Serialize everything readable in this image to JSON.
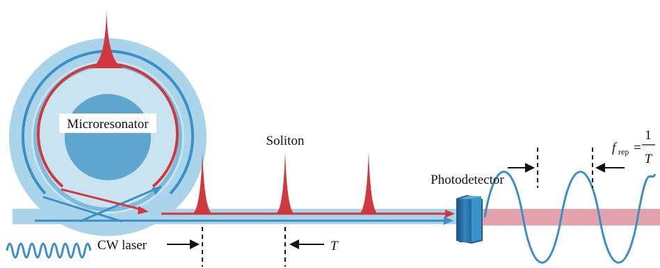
{
  "labels": {
    "microresonator": "Microresonator",
    "soliton": "Soliton",
    "photodetector": "Photodetector",
    "cw_laser": "CW laser",
    "period": "T",
    "frep_f": "f",
    "frep_sub": "rep",
    "frep_eq": "=",
    "frep_num": "1",
    "frep_den": "T"
  },
  "colors": {
    "ring_outer": "#a9d4ea",
    "ring_inner": "#7fbbdb",
    "core": "#5fa6cf",
    "blue_line": "#3b8fc6",
    "waveguide": "#a9d4ea",
    "soliton_red": "#d1383e",
    "output_band": "#e3a3ad",
    "detector": "#2f7fb5"
  }
}
